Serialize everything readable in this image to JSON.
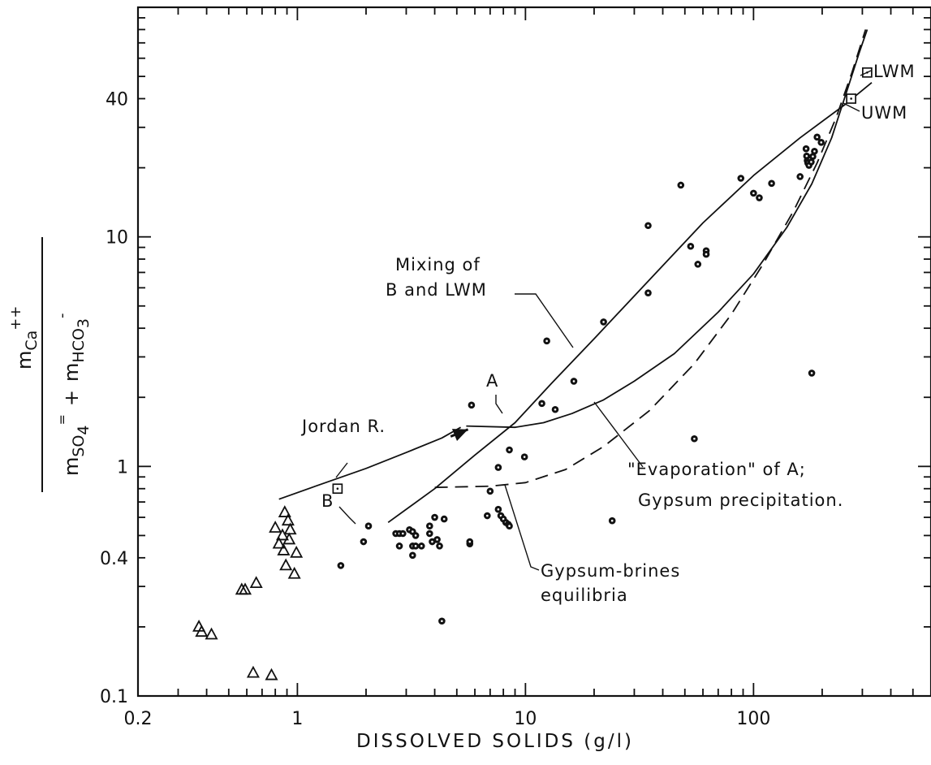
{
  "colors": {
    "ink": "#111111",
    "paper": "#ffffff"
  },
  "chart_data": {
    "type": "scatter",
    "title": "",
    "xlabel": "DISSOLVED SOLIDS (g/l)",
    "ylabel": {
      "numerator": "m",
      "numerator_sub": "Ca",
      "numerator_sup": "++",
      "den_term1": "m",
      "den_term1_sub": "SO",
      "den_term1_sub2": "4",
      "den_term1_sup": "=",
      "plus": "+",
      "den_term2": "m",
      "den_term2_sub": "HCO",
      "den_term2_sub2": "3",
      "den_term2_sup": "-"
    },
    "xscale": "log",
    "yscale": "log",
    "xlim": [
      0.2,
      600
    ],
    "ylim": [
      0.1,
      100
    ],
    "x_ticks": [
      {
        "value": 0.2,
        "label": "0.2"
      },
      {
        "value": 1,
        "label": "1"
      },
      {
        "value": 10,
        "label": "10"
      },
      {
        "value": 100,
        "label": "100"
      }
    ],
    "y_ticks": [
      {
        "value": 0.1,
        "label": "0.1"
      },
      {
        "value": 0.4,
        "label": "0.4"
      },
      {
        "value": 1,
        "label": "1"
      },
      {
        "value": 10,
        "label": "10"
      },
      {
        "value": 40,
        "label": "40"
      }
    ],
    "grid": false,
    "series": [
      {
        "marker": "triangle",
        "points": [
          {
            "x": 0.88,
            "y": 0.63
          },
          {
            "x": 0.91,
            "y": 0.58
          },
          {
            "x": 0.8,
            "y": 0.54
          },
          {
            "x": 0.93,
            "y": 0.53
          },
          {
            "x": 0.86,
            "y": 0.5
          },
          {
            "x": 0.92,
            "y": 0.48
          },
          {
            "x": 0.83,
            "y": 0.46
          },
          {
            "x": 0.99,
            "y": 0.42
          },
          {
            "x": 0.87,
            "y": 0.43
          },
          {
            "x": 0.89,
            "y": 0.37
          },
          {
            "x": 0.97,
            "y": 0.34
          },
          {
            "x": 0.66,
            "y": 0.31
          },
          {
            "x": 0.57,
            "y": 0.29
          },
          {
            "x": 0.59,
            "y": 0.29
          },
          {
            "x": 0.37,
            "y": 0.2
          },
          {
            "x": 0.38,
            "y": 0.19
          },
          {
            "x": 0.42,
            "y": 0.185
          },
          {
            "x": 0.64,
            "y": 0.126
          },
          {
            "x": 0.77,
            "y": 0.123
          }
        ]
      },
      {
        "marker": "filled-dot",
        "points": [
          {
            "x": 1.55,
            "y": 0.37
          },
          {
            "x": 1.95,
            "y": 0.47
          },
          {
            "x": 2.05,
            "y": 0.55
          },
          {
            "x": 2.7,
            "y": 0.51
          },
          {
            "x": 2.8,
            "y": 0.51
          },
          {
            "x": 2.9,
            "y": 0.51
          },
          {
            "x": 3.1,
            "y": 0.53
          },
          {
            "x": 3.2,
            "y": 0.52
          },
          {
            "x": 3.3,
            "y": 0.5
          },
          {
            "x": 3.8,
            "y": 0.51
          },
          {
            "x": 2.8,
            "y": 0.45
          },
          {
            "x": 3.2,
            "y": 0.45
          },
          {
            "x": 3.3,
            "y": 0.45
          },
          {
            "x": 3.5,
            "y": 0.45
          },
          {
            "x": 3.2,
            "y": 0.41
          },
          {
            "x": 3.9,
            "y": 0.47
          },
          {
            "x": 4.1,
            "y": 0.48
          },
          {
            "x": 4.2,
            "y": 0.45
          },
          {
            "x": 3.8,
            "y": 0.55
          },
          {
            "x": 4.0,
            "y": 0.6
          },
          {
            "x": 4.4,
            "y": 0.59
          },
          {
            "x": 4.3,
            "y": 0.212
          },
          {
            "x": 5.7,
            "y": 0.46
          },
          {
            "x": 5.7,
            "y": 0.47
          },
          {
            "x": 6.8,
            "y": 0.61
          },
          {
            "x": 7.0,
            "y": 0.78
          },
          {
            "x": 7.6,
            "y": 0.65
          },
          {
            "x": 7.8,
            "y": 0.61
          },
          {
            "x": 8.0,
            "y": 0.59
          },
          {
            "x": 8.2,
            "y": 0.57
          },
          {
            "x": 8.4,
            "y": 0.56
          },
          {
            "x": 8.5,
            "y": 0.55
          },
          {
            "x": 7.6,
            "y": 0.99
          },
          {
            "x": 8.5,
            "y": 1.18
          },
          {
            "x": 9.9,
            "y": 1.1
          },
          {
            "x": 5.8,
            "y": 1.85
          },
          {
            "x": 11.8,
            "y": 1.88
          },
          {
            "x": 13.5,
            "y": 1.77
          },
          {
            "x": 12.4,
            "y": 3.52
          },
          {
            "x": 16.3,
            "y": 2.35
          },
          {
            "x": 22.0,
            "y": 4.26
          },
          {
            "x": 24.0,
            "y": 0.58
          },
          {
            "x": 34.5,
            "y": 5.7
          },
          {
            "x": 34.5,
            "y": 11.2
          },
          {
            "x": 48.0,
            "y": 16.8
          },
          {
            "x": 53.0,
            "y": 9.1
          },
          {
            "x": 57.0,
            "y": 7.6
          },
          {
            "x": 62.0,
            "y": 8.7
          },
          {
            "x": 62.0,
            "y": 8.4
          },
          {
            "x": 55.0,
            "y": 1.32
          },
          {
            "x": 88.0,
            "y": 18.0
          },
          {
            "x": 100.0,
            "y": 15.5
          },
          {
            "x": 106.0,
            "y": 14.8
          },
          {
            "x": 120.0,
            "y": 17.1
          },
          {
            "x": 160.0,
            "y": 18.3
          },
          {
            "x": 170.0,
            "y": 24.2
          },
          {
            "x": 171.0,
            "y": 22.5
          },
          {
            "x": 172.0,
            "y": 21.5
          },
          {
            "x": 173.0,
            "y": 21.0
          },
          {
            "x": 175.0,
            "y": 20.5
          },
          {
            "x": 177.0,
            "y": 21.8
          },
          {
            "x": 179.0,
            "y": 21.2
          },
          {
            "x": 182.0,
            "y": 22.4
          },
          {
            "x": 185.0,
            "y": 23.6
          },
          {
            "x": 190.0,
            "y": 27.2
          },
          {
            "x": 198.0,
            "y": 25.8
          },
          {
            "x": 180.0,
            "y": 2.55
          }
        ]
      },
      {
        "marker": "open-square",
        "points": [
          {
            "x": 1.5,
            "y": 0.8
          },
          {
            "x": 268,
            "y": 40
          },
          {
            "x": 315,
            "y": 52
          }
        ]
      }
    ],
    "curves": [
      {
        "style": "solid",
        "points": [
          [
            0.83,
            0.72
          ],
          [
            1.2,
            0.82
          ],
          [
            2.0,
            0.98
          ],
          [
            3.0,
            1.15
          ],
          [
            4.3,
            1.33
          ],
          [
            5.2,
            1.48
          ]
        ]
      },
      {
        "style": "solid",
        "points": [
          [
            2.5,
            0.57
          ],
          [
            4.0,
            0.8
          ],
          [
            6.0,
            1.12
          ],
          [
            9.0,
            1.55
          ],
          [
            13.0,
            2.3
          ],
          [
            20.0,
            3.6
          ],
          [
            35.0,
            6.5
          ],
          [
            60.0,
            11.5
          ],
          [
            100.0,
            18.5
          ],
          [
            160.0,
            27.0
          ],
          [
            250.0,
            37.5
          ],
          [
            330.0,
            47.0
          ]
        ]
      },
      {
        "style": "solid",
        "points": [
          [
            5.5,
            1.5
          ],
          [
            9.0,
            1.48
          ],
          [
            12.0,
            1.55
          ],
          [
            16.0,
            1.7
          ],
          [
            22.0,
            1.95
          ],
          [
            30.0,
            2.35
          ],
          [
            45.0,
            3.1
          ],
          [
            70.0,
            4.7
          ],
          [
            100.0,
            6.9
          ],
          [
            140.0,
            11.0
          ],
          [
            180.0,
            17.0
          ],
          [
            220.0,
            27.0
          ],
          [
            260.0,
            45.0
          ],
          [
            290.0,
            63.0
          ],
          [
            315.0,
            80.0
          ]
        ]
      },
      {
        "style": "dashed",
        "points": [
          [
            4.0,
            0.81
          ],
          [
            7.0,
            0.82
          ],
          [
            10.0,
            0.85
          ],
          [
            15.0,
            0.97
          ],
          [
            22.0,
            1.22
          ],
          [
            35.0,
            1.75
          ],
          [
            55.0,
            2.8
          ],
          [
            80.0,
            4.6
          ],
          [
            110.0,
            7.6
          ],
          [
            150.0,
            13.0
          ],
          [
            190.0,
            21.0
          ],
          [
            230.0,
            33.0
          ],
          [
            270.0,
            52.0
          ],
          [
            310.0,
            80.0
          ]
        ]
      },
      {
        "style": "solid-bold",
        "points": [
          [
            4.7,
            1.35
          ],
          [
            5.6,
            1.45
          ]
        ]
      }
    ],
    "annotations": [
      {
        "id": "mixing",
        "lines": [
          "Mixing of",
          "B and LWM"
        ]
      },
      {
        "id": "jordan",
        "lines": [
          "Jordan R."
        ]
      },
      {
        "id": "a",
        "lines": [
          "A"
        ]
      },
      {
        "id": "b",
        "lines": [
          "B"
        ]
      },
      {
        "id": "evap",
        "lines": [
          "\"Evaporation\" of A;",
          "Gypsum precipitation."
        ]
      },
      {
        "id": "gypsum",
        "lines": [
          "Gypsum-brines",
          "equilibria"
        ]
      },
      {
        "id": "lwm",
        "lines": [
          "LWM"
        ]
      },
      {
        "id": "uwm",
        "lines": [
          "UWM"
        ]
      }
    ]
  }
}
